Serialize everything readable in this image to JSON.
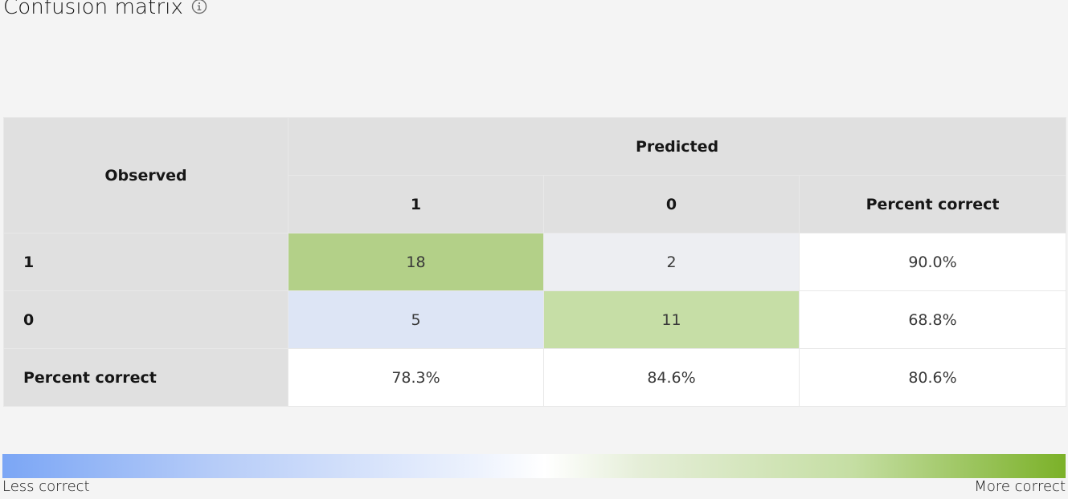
{
  "title": "Confusion matrix",
  "icons": {
    "info": "info-icon"
  },
  "matrix": {
    "observed_label": "Observed",
    "predicted_label": "Predicted",
    "col_headers": [
      "1",
      "0",
      "Percent correct"
    ],
    "rows": [
      {
        "label": "1",
        "values": [
          "18",
          "2",
          "90.0%"
        ]
      },
      {
        "label": "0",
        "values": [
          "5",
          "11",
          "68.8%"
        ]
      },
      {
        "label": "Percent correct",
        "values": [
          "78.3%",
          "84.6%",
          "80.6%"
        ]
      }
    ]
  },
  "legend": {
    "left_label": "Less correct",
    "right_label": "More correct",
    "colors": [
      "#7ba6f5",
      "#ffffff",
      "#7bb128"
    ]
  },
  "cell_colors": {
    "high_correct": "#b3d088",
    "low_error": "#edeef2",
    "mid_error": "#dde5f5",
    "mid_correct": "#c6dea6"
  }
}
